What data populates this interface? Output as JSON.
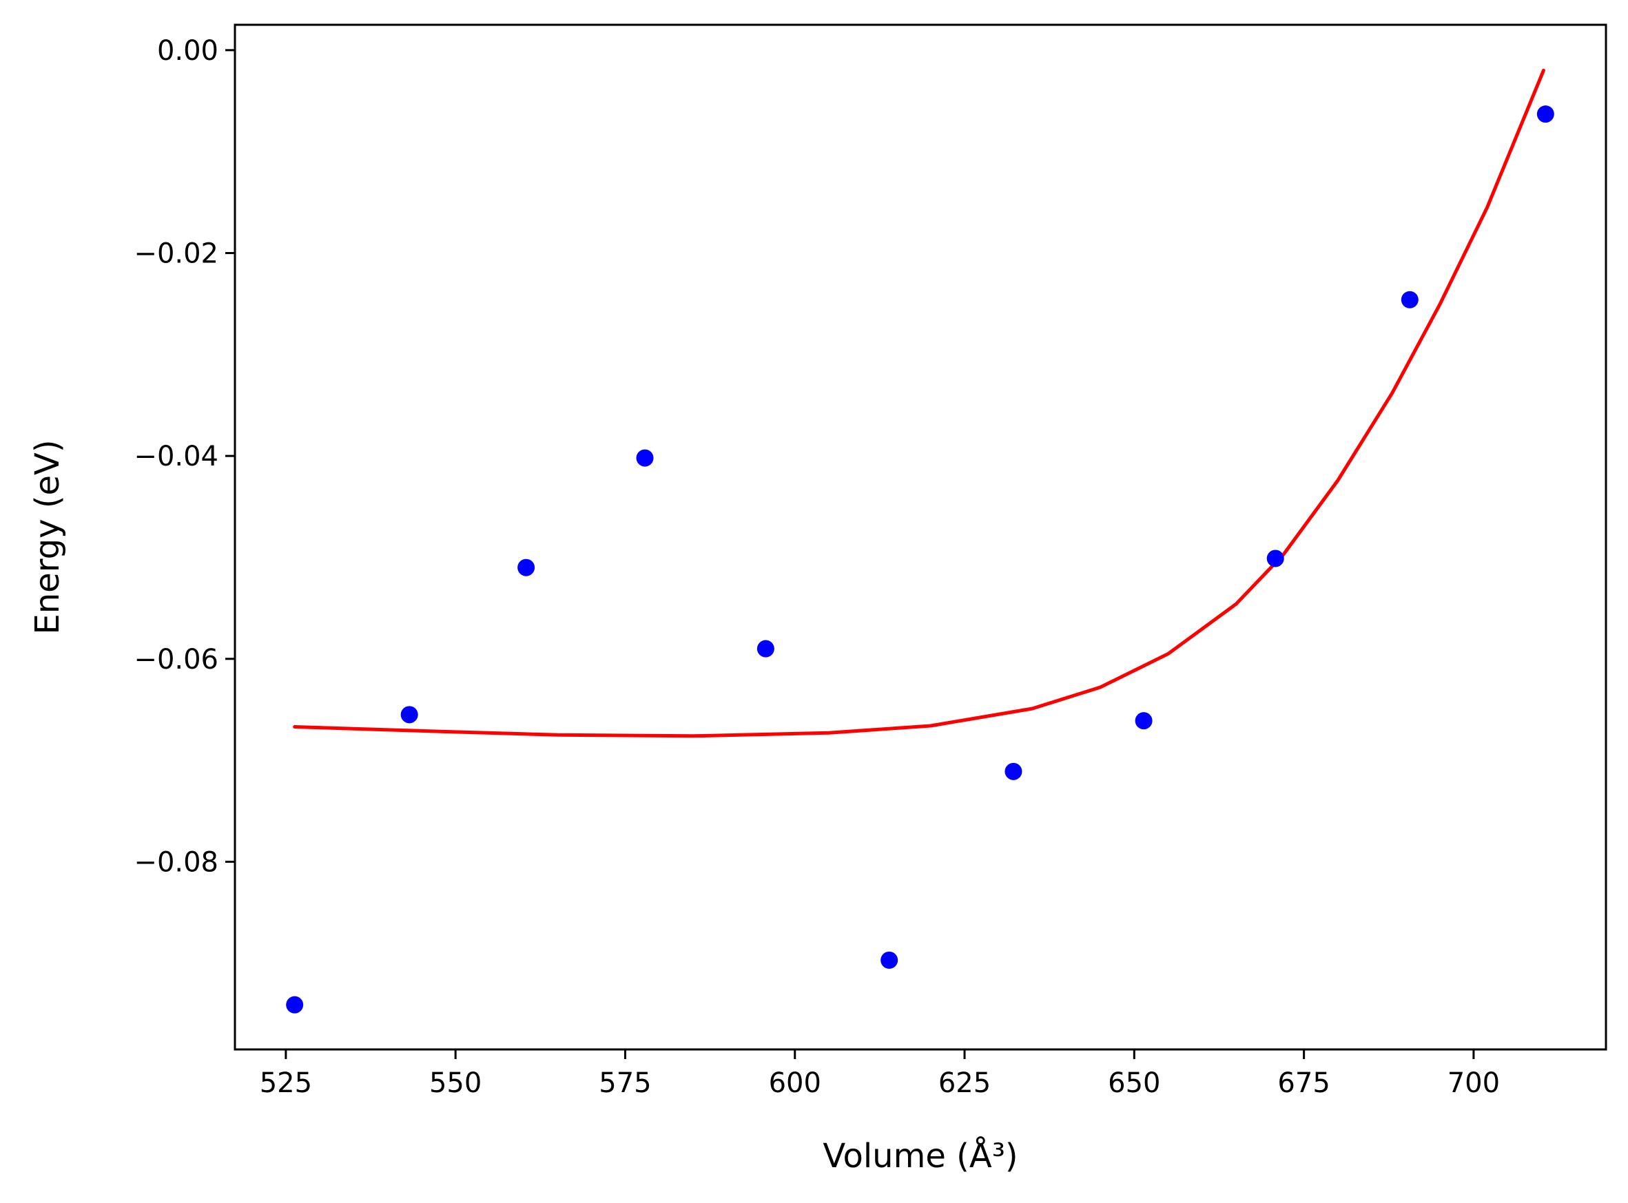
{
  "chart_data": {
    "type": "scatter",
    "xlabel": "Volume (Å³)",
    "ylabel": "Energy (eV)",
    "xlim": [
      517.5,
      719.5
    ],
    "ylim": [
      -0.0985,
      0.0025
    ],
    "xticks": [
      525,
      550,
      575,
      600,
      625,
      650,
      675,
      700
    ],
    "yticks": [
      -0.08,
      -0.06,
      -0.04,
      -0.02,
      0.0
    ],
    "xtick_labels": [
      "525",
      "550",
      "575",
      "600",
      "625",
      "650",
      "675",
      "700"
    ],
    "ytick_labels": [
      "−0.08",
      "−0.06",
      "−0.04",
      "−0.02",
      "0.00"
    ],
    "grid": false,
    "series": [
      {
        "kind": "points",
        "color": "#0000ff",
        "x": [
          526.3,
          543.2,
          560.4,
          577.9,
          595.7,
          613.9,
          632.2,
          651.4,
          670.8,
          690.6,
          710.6
        ],
        "y": [
          -0.0941,
          -0.0655,
          -0.051,
          -0.0402,
          -0.059,
          -0.0897,
          -0.0711,
          -0.0661,
          -0.0501,
          -0.0246,
          -0.0063
        ]
      },
      {
        "kind": "line",
        "color": "#ff0000",
        "x": [
          526.3,
          545.0,
          565.0,
          585.0,
          605.0,
          620.0,
          635.0,
          645.0,
          655.0,
          665.0,
          672.0,
          680.0,
          688.0,
          695.0,
          702.0,
          710.3
        ],
        "y": [
          -0.0667,
          -0.0671,
          -0.0675,
          -0.0676,
          -0.0673,
          -0.0666,
          -0.0649,
          -0.0628,
          -0.0595,
          -0.0546,
          -0.0497,
          -0.0424,
          -0.0338,
          -0.0251,
          -0.0155,
          -0.002
        ]
      }
    ]
  }
}
